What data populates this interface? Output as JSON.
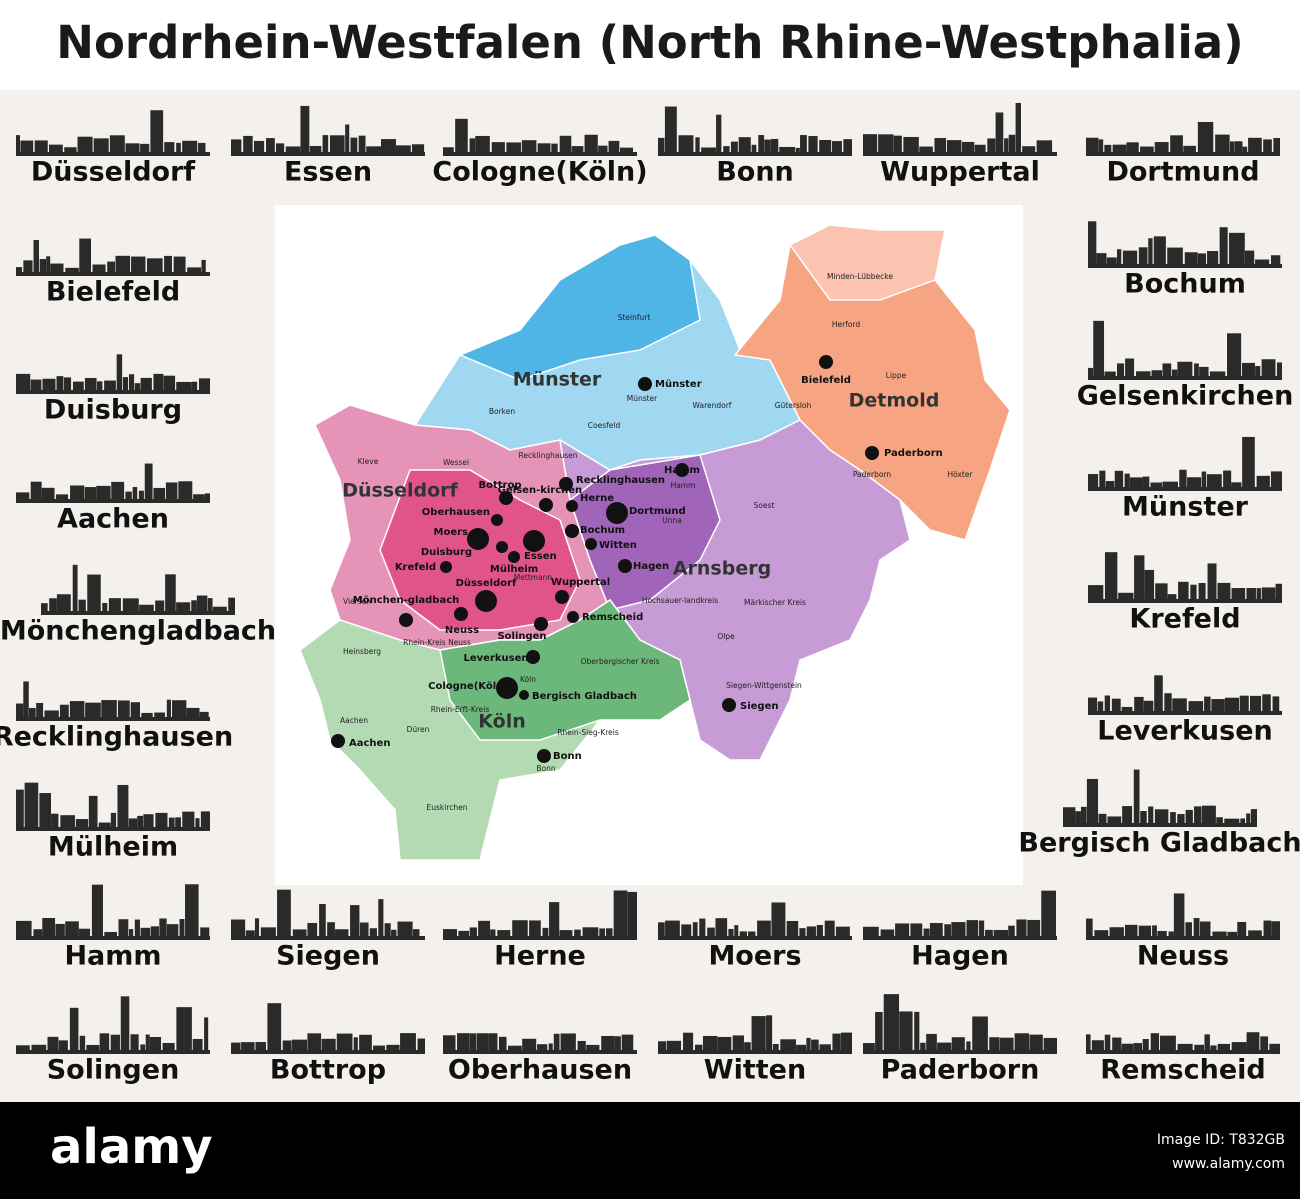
{
  "title": "Nordrhein-Westfalen (North Rhine-Westphalia)",
  "skylines": [
    "Düsseldorf",
    "Essen",
    "Cologne(Köln)",
    "Bonn",
    "Wuppertal",
    "Dortmund",
    "Bielefeld",
    "Duisburg",
    "Aachen",
    "Mönchengladbach",
    "Recklinghausen",
    "Mülheim",
    "Bochum",
    "Gelsenkirchen",
    "Münster",
    "Krefeld",
    "Leverkusen",
    "Bergisch Gladbach",
    "Hamm",
    "Siegen",
    "Herne",
    "Moers",
    "Hagen",
    "Neuss",
    "Solingen",
    "Bottrop",
    "Oberhausen",
    "Witten",
    "Paderborn",
    "Remscheid"
  ],
  "map": {
    "regions": [
      "Münster",
      "Detmold",
      "Düsseldorf",
      "Arnsberg",
      "Köln"
    ],
    "cities": [
      "Münster",
      "Bielefeld",
      "Paderborn",
      "Hamm",
      "Recklinghausen",
      "Gelsen-kirchen",
      "Bottrop",
      "Oberhausen",
      "Herne",
      "Dortmund",
      "Bochum",
      "Witten",
      "Moers",
      "Duisburg",
      "Mülheim",
      "Essen",
      "Krefeld",
      "Hagen",
      "Wuppertal",
      "Düsseldorf",
      "Mönchen-gladbach",
      "Neuss",
      "Remscheid",
      "Solingen",
      "Leverkusen",
      "Cologne(Köln)",
      "Bergisch Gladbach",
      "Aachen",
      "Bonn",
      "Siegen"
    ],
    "districts": [
      "Steinfurt",
      "Borken",
      "Coesfeld",
      "Warendorf",
      "Minden-Lübbecke",
      "Herford",
      "Lippe",
      "Gütersloh",
      "Höxter",
      "Paderborn",
      "Kleve",
      "Wessel",
      "Recklinghausen",
      "Unna",
      "Soest",
      "Viersen",
      "Mettmann",
      "Hochsauer-landkreis",
      "Märkischer Kreis",
      "Olpe",
      "Siegen-Wittgenstein",
      "Heinsberg",
      "Rhein-Erft-Kreis",
      "Düren",
      "Aachen",
      "Euskirchen",
      "Rhein-Sieg-Kreis",
      "Oberbergischer Kreis",
      "Rhein-Kreis Neuss",
      "Münster",
      "Hamm",
      "Bonn",
      "Köln"
    ]
  },
  "footer": {
    "brand": "alamy",
    "image_id": "Image ID: T832GB",
    "url": "www.alamy.com"
  }
}
